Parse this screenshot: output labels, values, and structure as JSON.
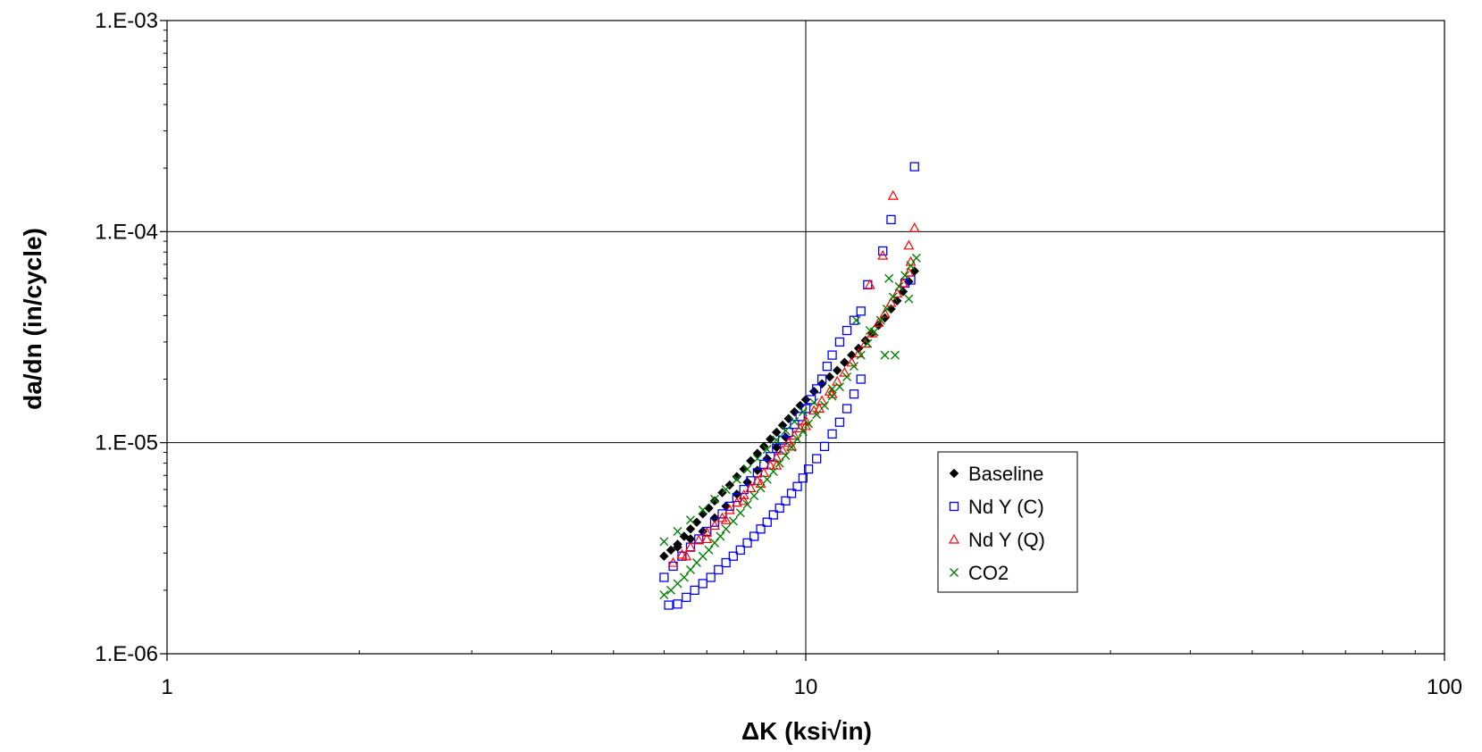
{
  "chart_data": {
    "type": "scatter",
    "title": "",
    "xlabel": "ΔK (ksi√in)",
    "ylabel": "da/dn (in/cycle)",
    "x_scale": "log",
    "y_scale": "log",
    "xlim": [
      1,
      100
    ],
    "ylim": [
      1e-06,
      0.001
    ],
    "x_ticks": [
      "1",
      "10",
      "100"
    ],
    "y_ticks": [
      "1.E-06",
      "1.E-05",
      "1.E-04",
      "1.E-03"
    ],
    "grid": "major",
    "legend_position": "right-center",
    "series": [
      {
        "name": "Baseline",
        "marker": "diamond-filled",
        "color": "#000000",
        "points": [
          [
            6.0,
            2.9e-06
          ],
          [
            6.15,
            3.1e-06
          ],
          [
            6.3,
            3.3e-06
          ],
          [
            6.45,
            3.6e-06
          ],
          [
            6.6,
            3.9e-06
          ],
          [
            6.75,
            4.2e-06
          ],
          [
            6.9,
            4.6e-06
          ],
          [
            7.05,
            4.9e-06
          ],
          [
            7.2,
            5.3e-06
          ],
          [
            7.4,
            5.8e-06
          ],
          [
            7.6,
            6.3e-06
          ],
          [
            7.8,
            6.9e-06
          ],
          [
            8.0,
            7.5e-06
          ],
          [
            8.2,
            8.2e-06
          ],
          [
            8.4,
            8.9e-06
          ],
          [
            8.6,
            9.6e-06
          ],
          [
            8.8,
            1.04e-05
          ],
          [
            9.0,
            1.12e-05
          ],
          [
            9.2,
            1.21e-05
          ],
          [
            9.4,
            1.3e-05
          ],
          [
            9.6,
            1.4e-05
          ],
          [
            9.8,
            1.5e-05
          ],
          [
            10.0,
            1.6e-05
          ],
          [
            10.3,
            1.75e-05
          ],
          [
            10.6,
            1.9e-05
          ],
          [
            10.9,
            2.05e-05
          ],
          [
            11.2,
            2.2e-05
          ],
          [
            11.5,
            2.4e-05
          ],
          [
            11.8,
            2.6e-05
          ],
          [
            12.1,
            2.8e-05
          ],
          [
            12.4,
            3.05e-05
          ],
          [
            12.7,
            3.3e-05
          ],
          [
            13.0,
            3.6e-05
          ],
          [
            13.3,
            3.9e-05
          ],
          [
            13.6,
            4.3e-05
          ],
          [
            13.9,
            4.7e-05
          ],
          [
            14.2,
            5.2e-05
          ],
          [
            14.5,
            5.8e-05
          ],
          [
            14.8,
            6.5e-05
          ],
          [
            6.3,
            3.2e-06
          ],
          [
            6.6,
            3.5e-06
          ],
          [
            6.9,
            3.8e-06
          ],
          [
            7.2,
            4.4e-06
          ],
          [
            7.5,
            5e-06
          ],
          [
            7.8,
            5.7e-06
          ],
          [
            8.1,
            6.5e-06
          ],
          [
            8.4,
            7.4e-06
          ],
          [
            8.7,
            8.4e-06
          ],
          [
            9.0,
            9.5e-06
          ],
          [
            9.3,
            1.06e-05
          ]
        ]
      },
      {
        "name": "Nd Y (C)",
        "marker": "square-open",
        "color": "#0000ff",
        "points": [
          [
            6.1,
            1.7e-06
          ],
          [
            6.3,
            1.72e-06
          ],
          [
            6.5,
            1.85e-06
          ],
          [
            6.7,
            2e-06
          ],
          [
            6.9,
            2.15e-06
          ],
          [
            7.1,
            2.3e-06
          ],
          [
            7.3,
            2.5e-06
          ],
          [
            7.5,
            2.7e-06
          ],
          [
            7.7,
            2.9e-06
          ],
          [
            7.9,
            3.1e-06
          ],
          [
            8.1,
            3.35e-06
          ],
          [
            8.3,
            3.6e-06
          ],
          [
            8.5,
            3.9e-06
          ],
          [
            8.7,
            4.2e-06
          ],
          [
            8.9,
            4.55e-06
          ],
          [
            9.1,
            4.9e-06
          ],
          [
            9.3,
            5.3e-06
          ],
          [
            9.5,
            5.75e-06
          ],
          [
            9.7,
            6.2e-06
          ],
          [
            9.9,
            6.8e-06
          ],
          [
            10.1,
            7.5e-06
          ],
          [
            10.4,
            8.4e-06
          ],
          [
            10.7,
            9.6e-06
          ],
          [
            11.0,
            1.1e-05
          ],
          [
            11.3,
            1.25e-05
          ],
          [
            11.6,
            1.45e-05
          ],
          [
            11.9,
            1.7e-05
          ],
          [
            12.2,
            2e-05
          ],
          [
            6.0,
            2.3e-06
          ],
          [
            6.2,
            2.6e-06
          ],
          [
            6.4,
            2.9e-06
          ],
          [
            6.6,
            3.2e-06
          ],
          [
            6.8,
            3.5e-06
          ],
          [
            7.0,
            3.8e-06
          ],
          [
            7.2,
            4.2e-06
          ],
          [
            7.4,
            4.6e-06
          ],
          [
            7.6,
            5e-06
          ],
          [
            7.8,
            5.5e-06
          ],
          [
            8.0,
            6e-06
          ],
          [
            8.2,
            6.6e-06
          ],
          [
            8.4,
            7.2e-06
          ],
          [
            8.6,
            7.9e-06
          ],
          [
            8.8,
            8.6e-06
          ],
          [
            9.0,
            9.4e-06
          ],
          [
            9.2,
            1.03e-05
          ],
          [
            9.4,
            1.12e-05
          ],
          [
            9.6,
            1.22e-05
          ],
          [
            9.8,
            1.33e-05
          ],
          [
            10.0,
            1.45e-05
          ],
          [
            10.2,
            1.6e-05
          ],
          [
            10.4,
            1.8e-05
          ],
          [
            10.6,
            2e-05
          ],
          [
            10.8,
            2.3e-05
          ],
          [
            11.0,
            2.6e-05
          ],
          [
            11.3,
            3e-05
          ],
          [
            11.6,
            3.4e-05
          ],
          [
            11.9,
            3.8e-05
          ],
          [
            12.2,
            4.2e-05
          ],
          [
            12.5,
            5.6e-05
          ],
          [
            13.2,
            8.1e-05
          ],
          [
            13.6,
            0.000114
          ],
          [
            14.3,
            5.7e-05
          ],
          [
            14.6,
            5.9e-05
          ],
          [
            14.8,
            0.000203
          ]
        ]
      },
      {
        "name": "Nd Y (Q)",
        "marker": "triangle-open",
        "color": "#ff0000",
        "points": [
          [
            6.2,
            2.7e-06
          ],
          [
            6.4,
            2.95e-06
          ],
          [
            6.6,
            3.2e-06
          ],
          [
            6.8,
            3.45e-06
          ],
          [
            7.0,
            3.75e-06
          ],
          [
            7.2,
            4.05e-06
          ],
          [
            7.4,
            4.4e-06
          ],
          [
            7.6,
            4.8e-06
          ],
          [
            7.8,
            5.2e-06
          ],
          [
            8.0,
            5.65e-06
          ],
          [
            8.2,
            6.1e-06
          ],
          [
            8.4,
            6.6e-06
          ],
          [
            8.6,
            7.2e-06
          ],
          [
            8.8,
            7.8e-06
          ],
          [
            9.0,
            8.5e-06
          ],
          [
            9.2,
            9.2e-06
          ],
          [
            9.4,
            1e-05
          ],
          [
            9.6,
            1.08e-05
          ],
          [
            9.8,
            1.17e-05
          ],
          [
            10.0,
            1.27e-05
          ],
          [
            10.3,
            1.42e-05
          ],
          [
            10.6,
            1.58e-05
          ],
          [
            10.9,
            1.75e-05
          ],
          [
            11.2,
            1.95e-05
          ],
          [
            11.5,
            2.15e-05
          ],
          [
            11.8,
            2.4e-05
          ],
          [
            12.1,
            2.65e-05
          ],
          [
            12.4,
            2.95e-05
          ],
          [
            12.7,
            3.3e-05
          ],
          [
            13.0,
            3.7e-05
          ],
          [
            13.3,
            4.1e-05
          ],
          [
            13.6,
            4.6e-05
          ],
          [
            13.9,
            5.1e-05
          ],
          [
            14.2,
            5.7e-05
          ],
          [
            14.5,
            6.4e-05
          ],
          [
            6.5,
            2.9e-06
          ],
          [
            7.0,
            3.5e-06
          ],
          [
            7.5,
            4.3e-06
          ],
          [
            8.0,
            5.3e-06
          ],
          [
            8.5,
            6.4e-06
          ],
          [
            9.0,
            7.8e-06
          ],
          [
            9.5,
            9.6e-06
          ],
          [
            10.0,
            1.2e-05
          ],
          [
            10.5,
            1.45e-05
          ],
          [
            11.0,
            1.7e-05
          ],
          [
            12.6,
            5.6e-05
          ],
          [
            13.2,
            7.7e-05
          ],
          [
            13.7,
            0.000148
          ],
          [
            14.5,
            8.6e-05
          ],
          [
            14.8,
            0.000104
          ],
          [
            14.6,
            7.2e-05
          ]
        ]
      },
      {
        "name": "CO2",
        "marker": "x",
        "color": "#008000",
        "points": [
          [
            6.0,
            1.9e-06
          ],
          [
            6.15,
            2e-06
          ],
          [
            6.3,
            2.15e-06
          ],
          [
            6.45,
            2.3e-06
          ],
          [
            6.6,
            2.5e-06
          ],
          [
            6.75,
            2.7e-06
          ],
          [
            6.9,
            2.9e-06
          ],
          [
            7.05,
            3.1e-06
          ],
          [
            7.2,
            3.35e-06
          ],
          [
            7.35,
            3.6e-06
          ],
          [
            7.5,
            3.9e-06
          ],
          [
            7.7,
            4.25e-06
          ],
          [
            7.9,
            4.65e-06
          ],
          [
            8.1,
            5.1e-06
          ],
          [
            8.3,
            5.6e-06
          ],
          [
            8.5,
            6.1e-06
          ],
          [
            8.7,
            6.7e-06
          ],
          [
            8.9,
            7.3e-06
          ],
          [
            9.1,
            8e-06
          ],
          [
            9.3,
            8.7e-06
          ],
          [
            9.5,
            9.5e-06
          ],
          [
            9.7,
            1.04e-05
          ],
          [
            9.9,
            1.13e-05
          ],
          [
            10.1,
            1.23e-05
          ],
          [
            10.4,
            1.36e-05
          ],
          [
            10.7,
            1.5e-05
          ],
          [
            11.0,
            1.66e-05
          ],
          [
            11.3,
            1.84e-05
          ],
          [
            11.6,
            2.05e-05
          ],
          [
            11.9,
            2.3e-05
          ],
          [
            12.2,
            2.6e-05
          ],
          [
            12.5,
            2.95e-05
          ],
          [
            12.8,
            3.35e-05
          ],
          [
            13.1,
            3.8e-05
          ],
          [
            13.4,
            4.3e-05
          ],
          [
            13.7,
            4.9e-05
          ],
          [
            14.0,
            5.5e-05
          ],
          [
            14.3,
            6.2e-05
          ],
          [
            14.6,
            6.9e-05
          ],
          [
            14.9,
            7.5e-05
          ],
          [
            6.0,
            3.4e-06
          ],
          [
            6.3,
            3.8e-06
          ],
          [
            6.6,
            4.3e-06
          ],
          [
            6.9,
            4.8e-06
          ],
          [
            7.2,
            5.4e-06
          ],
          [
            7.5,
            6e-06
          ],
          [
            7.8,
            6.7e-06
          ],
          [
            8.1,
            7.5e-06
          ],
          [
            8.4,
            8.4e-06
          ],
          [
            8.7,
            9.3e-06
          ],
          [
            9.0,
            1.03e-05
          ],
          [
            9.3,
            1.14e-05
          ],
          [
            9.6,
            1.26e-05
          ],
          [
            9.9,
            1.4e-05
          ],
          [
            10.3,
            1.55e-05
          ],
          [
            11.0,
            1.8e-05
          ],
          [
            12.0,
            3.8e-05
          ],
          [
            12.6,
            3.4e-05
          ],
          [
            13.3,
            2.6e-05
          ],
          [
            13.8,
            2.6e-05
          ],
          [
            14.5,
            4.8e-05
          ],
          [
            13.5,
            6e-05
          ]
        ]
      }
    ]
  }
}
